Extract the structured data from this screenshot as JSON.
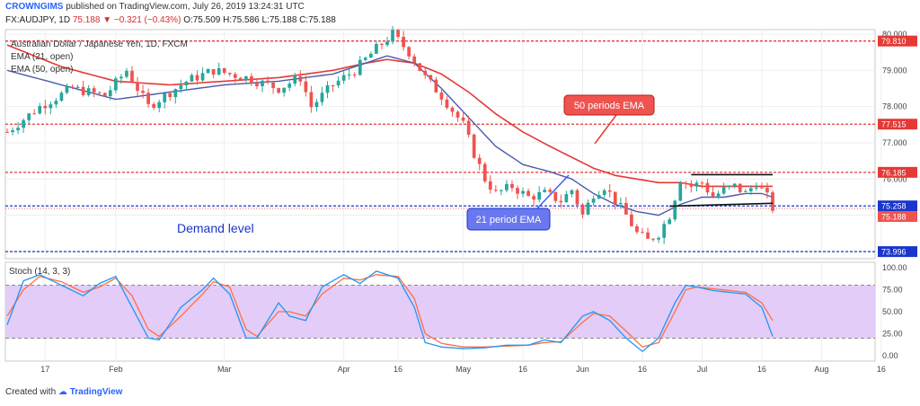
{
  "header": {
    "publisher": "CROWNGIMS",
    "published_text": "published on TradingView.com, July 26, 2019 13:24:31 UTC",
    "symbol": "FX:AUDJPY, 1D",
    "last": "75.188",
    "change": "−0.321 (−0.43%)",
    "ohlc": "O:75.509 H:75.586 L:75.188 C:75.188"
  },
  "legend": {
    "title": "Australian Dollar / Japanese Yen, 1D, FXCM",
    "ema21": "EMA (21, open)",
    "ema50": "EMA (50, open)",
    "stoch": "Stoch (14, 3, 3)"
  },
  "annotations": {
    "ema50_label": "50 periods EMA",
    "ema21_label": "21 period EMA",
    "demand_label": "Demand level"
  },
  "footer": {
    "created_with": "Created with",
    "brand": "TradingView"
  },
  "colors": {
    "up": "#26a69a",
    "down": "#ef5350",
    "ema21": "#4a5aa8",
    "ema50": "#e53935",
    "resistance": "#e53935",
    "support": "#1a35c9",
    "stoch_fill": "#e3ccf7"
  },
  "chart_data": {
    "type": "line",
    "price_axis": {
      "ticks": [
        "80.000",
        "79.000",
        "78.000",
        "77.000",
        "76.000",
        "75.000",
        "74.000"
      ],
      "ylim": [
        73.85,
        80.05
      ],
      "level_labels": [
        "79.810",
        "77.515",
        "76.185",
        "75.258",
        "75.188",
        "73.996"
      ]
    },
    "levels": [
      {
        "value": 79.81,
        "kind": "resistance"
      },
      {
        "value": 77.515,
        "kind": "resistance"
      },
      {
        "value": 76.185,
        "kind": "resistance"
      },
      {
        "value": 75.258,
        "kind": "support"
      },
      {
        "value": 73.996,
        "kind": "support"
      }
    ],
    "time_axis": {
      "ticks": [
        "17",
        "Feb",
        "Mar",
        "Apr",
        "16",
        "May",
        "16",
        "Jun",
        "16",
        "Jul",
        "16",
        "Aug",
        "16"
      ],
      "tick_index": [
        7,
        20,
        40,
        62,
        72,
        84,
        95,
        106,
        117,
        128,
        139,
        150,
        161
      ]
    },
    "close_anchors": [
      [
        0,
        77.3
      ],
      [
        6,
        78.0
      ],
      [
        12,
        78.5
      ],
      [
        18,
        78.3
      ],
      [
        22,
        79.0
      ],
      [
        26,
        78.0
      ],
      [
        33,
        78.7
      ],
      [
        38,
        79.0
      ],
      [
        44,
        78.8
      ],
      [
        50,
        78.5
      ],
      [
        54,
        78.8
      ],
      [
        56,
        78.0
      ],
      [
        60,
        78.6
      ],
      [
        64,
        79.0
      ],
      [
        68,
        79.6
      ],
      [
        71,
        80.0
      ],
      [
        74,
        79.5
      ],
      [
        77,
        78.8
      ],
      [
        80,
        78.3
      ],
      [
        84,
        77.5
      ],
      [
        86,
        76.7
      ],
      [
        88,
        76.0
      ],
      [
        90,
        75.6
      ],
      [
        93,
        75.8
      ],
      [
        96,
        75.5
      ],
      [
        99,
        75.6
      ],
      [
        102,
        75.4
      ],
      [
        104,
        75.7
      ],
      [
        106,
        75.0
      ],
      [
        108,
        75.6
      ],
      [
        110,
        75.8
      ],
      [
        112,
        75.4
      ],
      [
        114,
        75.0
      ],
      [
        116,
        74.5
      ],
      [
        118,
        74.3
      ],
      [
        120,
        74.5
      ],
      [
        122,
        75.0
      ],
      [
        124,
        76.0
      ],
      [
        126,
        75.8
      ],
      [
        128,
        75.9
      ],
      [
        130,
        75.5
      ],
      [
        132,
        75.7
      ],
      [
        134,
        75.8
      ],
      [
        136,
        75.6
      ],
      [
        138,
        75.9
      ],
      [
        140,
        75.5
      ],
      [
        141,
        75.2
      ]
    ],
    "ema21": [
      [
        0,
        79.0
      ],
      [
        10,
        78.6
      ],
      [
        20,
        78.2
      ],
      [
        30,
        78.4
      ],
      [
        40,
        78.6
      ],
      [
        50,
        78.7
      ],
      [
        60,
        78.9
      ],
      [
        66,
        79.2
      ],
      [
        70,
        79.4
      ],
      [
        75,
        79.2
      ],
      [
        80,
        78.5
      ],
      [
        85,
        77.7
      ],
      [
        90,
        76.9
      ],
      [
        95,
        76.4
      ],
      [
        100,
        76.2
      ],
      [
        104,
        76.0
      ],
      [
        108,
        75.6
      ],
      [
        112,
        75.3
      ],
      [
        116,
        75.1
      ],
      [
        120,
        75.0
      ],
      [
        124,
        75.3
      ],
      [
        128,
        75.5
      ],
      [
        132,
        75.5
      ],
      [
        136,
        75.6
      ],
      [
        139,
        75.6
      ],
      [
        141,
        75.5
      ]
    ],
    "ema50": [
      [
        0,
        79.7
      ],
      [
        10,
        79.1
      ],
      [
        20,
        78.7
      ],
      [
        30,
        78.6
      ],
      [
        40,
        78.7
      ],
      [
        50,
        78.8
      ],
      [
        60,
        79.0
      ],
      [
        66,
        79.2
      ],
      [
        70,
        79.3
      ],
      [
        75,
        79.2
      ],
      [
        80,
        78.9
      ],
      [
        85,
        78.4
      ],
      [
        90,
        77.8
      ],
      [
        95,
        77.3
      ],
      [
        100,
        76.9
      ],
      [
        104,
        76.6
      ],
      [
        108,
        76.3
      ],
      [
        112,
        76.1
      ],
      [
        116,
        76.0
      ],
      [
        120,
        75.9
      ],
      [
        124,
        75.9
      ],
      [
        128,
        75.8
      ],
      [
        132,
        75.8
      ],
      [
        136,
        75.8
      ],
      [
        139,
        75.8
      ],
      [
        141,
        75.8
      ]
    ],
    "stoch_axis": {
      "ticks": [
        "100.00",
        "75.00",
        "50.00",
        "25.00",
        "0.00"
      ],
      "ylim": [
        -4,
        104
      ],
      "band": [
        20,
        80
      ]
    },
    "stoch_k": [
      [
        0,
        35
      ],
      [
        3,
        85
      ],
      [
        6,
        92
      ],
      [
        10,
        80
      ],
      [
        14,
        68
      ],
      [
        17,
        82
      ],
      [
        20,
        90
      ],
      [
        23,
        55
      ],
      [
        26,
        20
      ],
      [
        28,
        18
      ],
      [
        32,
        55
      ],
      [
        36,
        75
      ],
      [
        38,
        88
      ],
      [
        41,
        70
      ],
      [
        44,
        20
      ],
      [
        46,
        20
      ],
      [
        50,
        60
      ],
      [
        52,
        45
      ],
      [
        55,
        40
      ],
      [
        58,
        78
      ],
      [
        62,
        92
      ],
      [
        65,
        82
      ],
      [
        68,
        96
      ],
      [
        72,
        88
      ],
      [
        75,
        55
      ],
      [
        77,
        15
      ],
      [
        80,
        10
      ],
      [
        84,
        8
      ],
      [
        88,
        9
      ],
      [
        92,
        12
      ],
      [
        96,
        12
      ],
      [
        99,
        18
      ],
      [
        102,
        15
      ],
      [
        106,
        45
      ],
      [
        108,
        50
      ],
      [
        111,
        40
      ],
      [
        114,
        20
      ],
      [
        117,
        5
      ],
      [
        120,
        20
      ],
      [
        123,
        60
      ],
      [
        125,
        80
      ],
      [
        127,
        78
      ],
      [
        130,
        74
      ],
      [
        133,
        72
      ],
      [
        136,
        70
      ],
      [
        139,
        55
      ],
      [
        141,
        22
      ]
    ],
    "stoch_d": [
      [
        0,
        45
      ],
      [
        3,
        75
      ],
      [
        6,
        90
      ],
      [
        10,
        84
      ],
      [
        14,
        72
      ],
      [
        17,
        78
      ],
      [
        20,
        88
      ],
      [
        23,
        68
      ],
      [
        26,
        30
      ],
      [
        28,
        22
      ],
      [
        32,
        45
      ],
      [
        36,
        70
      ],
      [
        38,
        84
      ],
      [
        41,
        78
      ],
      [
        44,
        30
      ],
      [
        46,
        22
      ],
      [
        50,
        50
      ],
      [
        52,
        50
      ],
      [
        55,
        45
      ],
      [
        58,
        70
      ],
      [
        62,
        88
      ],
      [
        65,
        86
      ],
      [
        68,
        92
      ],
      [
        72,
        90
      ],
      [
        75,
        65
      ],
      [
        77,
        25
      ],
      [
        80,
        14
      ],
      [
        84,
        10
      ],
      [
        88,
        10
      ],
      [
        92,
        11
      ],
      [
        96,
        12
      ],
      [
        99,
        15
      ],
      [
        102,
        16
      ],
      [
        106,
        38
      ],
      [
        108,
        48
      ],
      [
        111,
        45
      ],
      [
        114,
        28
      ],
      [
        117,
        10
      ],
      [
        120,
        15
      ],
      [
        123,
        50
      ],
      [
        125,
        75
      ],
      [
        127,
        78
      ],
      [
        130,
        76
      ],
      [
        133,
        74
      ],
      [
        136,
        72
      ],
      [
        139,
        60
      ],
      [
        141,
        40
      ]
    ],
    "n_bars": 142
  }
}
